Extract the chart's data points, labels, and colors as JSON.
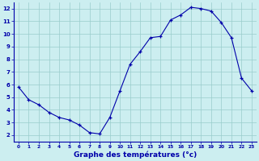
{
  "x": [
    0,
    1,
    2,
    3,
    4,
    5,
    6,
    7,
    8,
    9,
    10,
    11,
    12,
    13,
    14,
    15,
    16,
    17,
    18,
    19,
    20,
    21,
    22,
    23
  ],
  "y": [
    5.8,
    4.8,
    4.4,
    3.8,
    3.4,
    3.2,
    2.8,
    2.2,
    2.1,
    3.4,
    5.5,
    7.6,
    8.6,
    9.7,
    9.8,
    11.1,
    11.5,
    12.1,
    12.0,
    11.8,
    10.9,
    9.7,
    6.5,
    5.5
  ],
  "title": "Graphe des températures (°c)",
  "bg_color": "#cceef0",
  "line_color": "#0000aa",
  "grid_color": "#99cccc",
  "axis_label_color": "#0000aa",
  "xlim": [
    -0.5,
    23.5
  ],
  "ylim": [
    1.5,
    12.5
  ],
  "yticks": [
    2,
    3,
    4,
    5,
    6,
    7,
    8,
    9,
    10,
    11,
    12
  ],
  "xticks": [
    0,
    1,
    2,
    3,
    4,
    5,
    6,
    7,
    8,
    9,
    10,
    11,
    12,
    13,
    14,
    15,
    16,
    17,
    18,
    19,
    20,
    21,
    22,
    23
  ]
}
